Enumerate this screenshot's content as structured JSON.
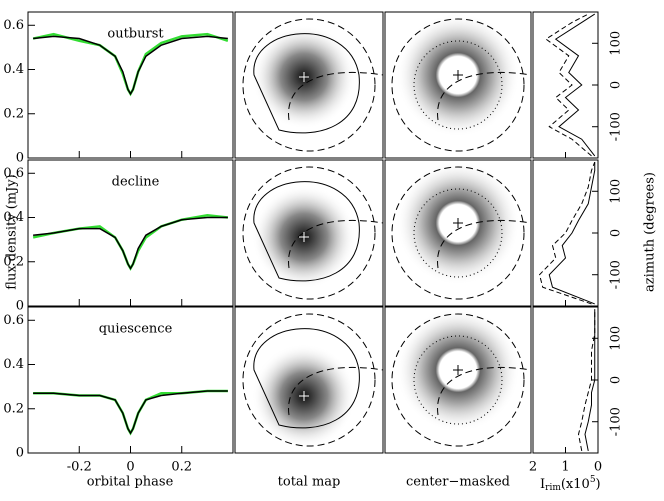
{
  "figure": {
    "ylabel": "flux density (mJy)",
    "xlabel": "orbital phase",
    "map_labels": [
      "total map",
      "center−masked"
    ],
    "rim_label": {
      "main": "I",
      "sub": "rim",
      "mid": "(x10",
      "sup": "5",
      "end": ")"
    },
    "right_label": "azimuth (degrees)"
  },
  "chart_data": [
    {
      "type": "line",
      "title": "outburst",
      "x": [
        -0.38,
        -0.3,
        -0.2,
        -0.12,
        -0.06,
        -0.03,
        -0.01,
        0,
        0.01,
        0.03,
        0.06,
        0.12,
        0.2,
        0.3,
        0.38
      ],
      "series": [
        {
          "color": "#33dd33",
          "values": [
            0.54,
            0.56,
            0.53,
            0.51,
            0.46,
            0.38,
            0.31,
            0.29,
            0.31,
            0.39,
            0.47,
            0.52,
            0.55,
            0.56,
            0.53
          ]
        },
        {
          "color": "#000000",
          "values": [
            0.54,
            0.55,
            0.54,
            0.51,
            0.46,
            0.39,
            0.31,
            0.29,
            0.31,
            0.39,
            0.46,
            0.51,
            0.54,
            0.55,
            0.54
          ]
        }
      ],
      "xlim": [
        -0.4,
        0.4
      ],
      "xticks": [
        -0.2,
        0,
        0.2
      ],
      "ylim": [
        0,
        0.66
      ],
      "yticks": [
        0,
        0.2,
        0.4,
        0.6
      ]
    },
    {
      "type": "line",
      "title": "decline",
      "x": [
        -0.38,
        -0.3,
        -0.2,
        -0.12,
        -0.06,
        -0.03,
        -0.01,
        0,
        0.01,
        0.03,
        0.06,
        0.12,
        0.2,
        0.3,
        0.38
      ],
      "series": [
        {
          "color": "#33dd33",
          "values": [
            0.31,
            0.33,
            0.35,
            0.36,
            0.31,
            0.25,
            0.19,
            0.17,
            0.19,
            0.25,
            0.31,
            0.36,
            0.39,
            0.41,
            0.4
          ]
        },
        {
          "color": "#000000",
          "values": [
            0.32,
            0.33,
            0.35,
            0.35,
            0.31,
            0.25,
            0.19,
            0.17,
            0.19,
            0.26,
            0.32,
            0.36,
            0.39,
            0.4,
            0.4
          ]
        }
      ],
      "xlim": [
        -0.4,
        0.4
      ],
      "xticks": [
        -0.2,
        0,
        0.2
      ],
      "ylim": [
        0,
        0.66
      ],
      "yticks": [
        0,
        0.2,
        0.4,
        0.6
      ]
    },
    {
      "type": "line",
      "title": "quiescence",
      "x": [
        -0.38,
        -0.3,
        -0.2,
        -0.12,
        -0.06,
        -0.03,
        -0.01,
        0,
        0.01,
        0.03,
        0.06,
        0.12,
        0.2,
        0.3,
        0.38
      ],
      "series": [
        {
          "color": "#33dd33",
          "values": [
            0.27,
            0.27,
            0.26,
            0.26,
            0.24,
            0.18,
            0.11,
            0.09,
            0.11,
            0.18,
            0.24,
            0.27,
            0.27,
            0.28,
            0.28
          ]
        },
        {
          "color": "#000000",
          "values": [
            0.27,
            0.27,
            0.26,
            0.26,
            0.24,
            0.18,
            0.11,
            0.09,
            0.11,
            0.18,
            0.24,
            0.26,
            0.27,
            0.28,
            0.28
          ]
        }
      ],
      "xlim": [
        -0.4,
        0.4
      ],
      "xticks": [
        -0.2,
        0,
        0.2
      ],
      "ylim": [
        0,
        0.66
      ],
      "yticks": [
        0,
        0.2,
        0.4,
        0.6
      ]
    },
    {
      "type": "profile",
      "azimuth": [
        -170,
        -130,
        -100,
        -60,
        -30,
        0,
        30,
        70,
        110,
        150,
        170
      ],
      "series": [
        {
          "color": "#000000",
          "values": [
            0.1,
            0.5,
            1.2,
            0.6,
            1.0,
            0.5,
            0.9,
            0.6,
            1.3,
            0.5,
            0.1
          ]
        },
        {
          "color": "#000000",
          "values": [
            0.2,
            0.8,
            1.5,
            0.9,
            1.3,
            0.8,
            1.2,
            0.9,
            1.6,
            0.8,
            0.3
          ]
        }
      ],
      "xlim": [
        2,
        0
      ],
      "xticks": [
        2,
        1,
        0
      ],
      "ylim": [
        -175,
        175
      ],
      "yticks": [
        -100,
        0,
        100
      ]
    },
    {
      "type": "profile",
      "azimuth": [
        -170,
        -130,
        -100,
        -60,
        -30,
        0,
        30,
        70,
        110,
        150,
        170
      ],
      "series": [
        {
          "color": "#000000",
          "values": [
            0.1,
            1.4,
            1.5,
            1.0,
            1.1,
            0.8,
            0.6,
            0.3,
            0.2,
            0.1,
            0.1
          ]
        },
        {
          "color": "#000000",
          "values": [
            0.2,
            1.7,
            1.8,
            1.3,
            1.4,
            1.0,
            0.8,
            0.5,
            0.3,
            0.2,
            0.1
          ]
        }
      ],
      "xlim": [
        2,
        0
      ],
      "xticks": [
        2,
        1,
        0
      ],
      "ylim": [
        -175,
        175
      ],
      "yticks": [
        -100,
        0,
        100
      ]
    },
    {
      "type": "profile",
      "azimuth": [
        -170,
        -130,
        -100,
        -60,
        -30,
        0,
        30,
        70,
        110,
        150,
        170
      ],
      "series": [
        {
          "color": "#000000",
          "values": [
            0.3,
            0.4,
            0.3,
            0.2,
            0.2,
            0.1,
            0.1,
            0.1,
            0.1,
            0.1,
            0.1
          ]
        },
        {
          "color": "#000000",
          "values": [
            0.5,
            0.6,
            0.5,
            0.4,
            0.3,
            0.2,
            0.2,
            0.2,
            0.1,
            0.1,
            0.1
          ]
        }
      ],
      "xlim": [
        2,
        0
      ],
      "xticks": [
        2,
        1,
        0
      ],
      "ylim": [
        -175,
        175
      ],
      "yticks": [
        -100,
        0,
        100
      ]
    }
  ]
}
